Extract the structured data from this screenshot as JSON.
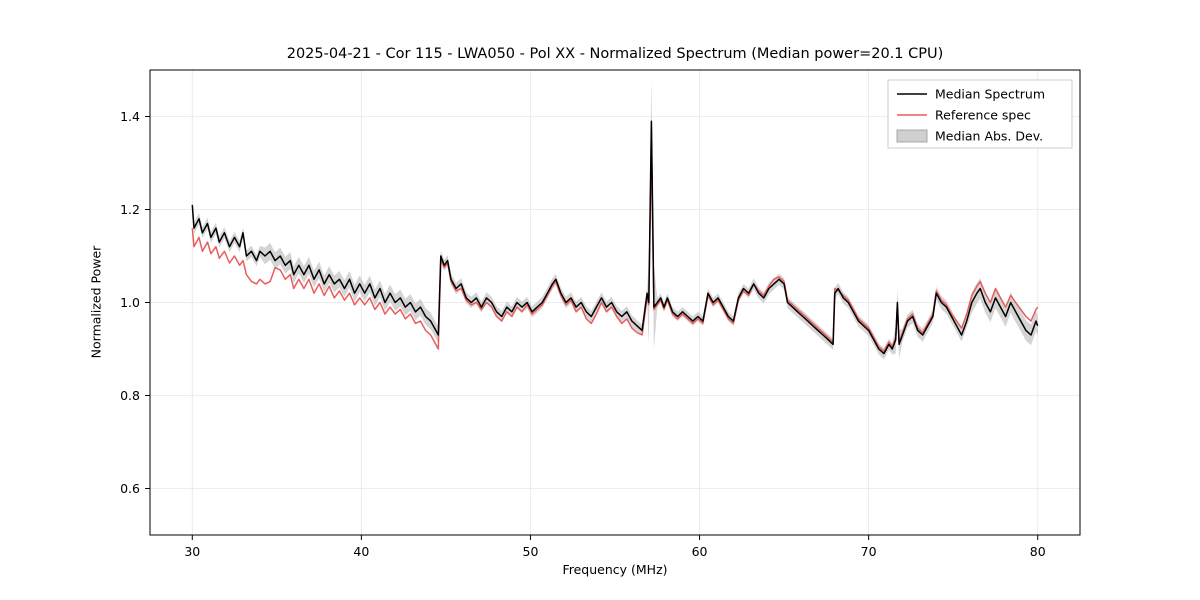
{
  "chart_data": {
    "type": "line",
    "title": "2025-04-21 - Cor 115 - LWA050 - Pol XX - Normalized Spectrum (Median power=20.1 CPU)",
    "xlabel": "Frequency (MHz)",
    "ylabel": "Normalized Power",
    "xlim": [
      27.5,
      82.5
    ],
    "ylim": [
      0.5,
      1.5
    ],
    "xticks": [
      30,
      40,
      50,
      60,
      70,
      80
    ],
    "xtick_labels": [
      "30",
      "40",
      "50",
      "60",
      "70",
      "80"
    ],
    "yticks": [
      0.6,
      0.8,
      1.0,
      1.2,
      1.4
    ],
    "ytick_labels": [
      "0.6",
      "0.8",
      "1.0",
      "1.2",
      "1.4"
    ],
    "grid": true,
    "band_color": "#b0b0b0",
    "legend": {
      "position": "upper right",
      "entries": [
        {
          "label": "Median Spectrum",
          "color": "#000000",
          "type": "line"
        },
        {
          "label": "Reference spec",
          "color": "#e95c5c",
          "type": "line"
        },
        {
          "label": "Median Abs. Dev.",
          "color": "#b0b0b0",
          "type": "patch"
        }
      ]
    },
    "x": [
      30.0,
      30.1,
      30.4,
      30.6,
      30.9,
      31.1,
      31.4,
      31.6,
      31.9,
      32.2,
      32.5,
      32.8,
      33.0,
      33.2,
      33.5,
      33.8,
      34.0,
      34.3,
      34.6,
      34.9,
      35.2,
      35.5,
      35.8,
      36.0,
      36.3,
      36.6,
      36.9,
      37.2,
      37.5,
      37.8,
      38.1,
      38.4,
      38.7,
      39.0,
      39.3,
      39.6,
      39.9,
      40.2,
      40.5,
      40.8,
      41.1,
      41.4,
      41.7,
      42.0,
      42.3,
      42.6,
      42.9,
      43.2,
      43.5,
      43.8,
      44.1,
      44.4,
      44.55,
      44.7,
      44.9,
      45.1,
      45.3,
      45.6,
      45.9,
      46.2,
      46.5,
      46.8,
      47.1,
      47.4,
      47.7,
      48.0,
      48.3,
      48.6,
      48.9,
      49.2,
      49.5,
      49.8,
      50.1,
      50.4,
      50.7,
      51.0,
      51.3,
      51.5,
      51.8,
      52.1,
      52.4,
      52.7,
      53.0,
      53.3,
      53.6,
      53.9,
      54.2,
      54.5,
      54.8,
      55.1,
      55.4,
      55.7,
      56.0,
      56.3,
      56.6,
      56.9,
      57.0,
      57.15,
      57.3,
      57.5,
      57.7,
      57.9,
      58.1,
      58.4,
      58.7,
      59.0,
      59.3,
      59.6,
      59.9,
      60.2,
      60.5,
      60.8,
      61.1,
      61.4,
      61.7,
      62.0,
      62.3,
      62.6,
      62.9,
      63.2,
      63.5,
      63.8,
      64.1,
      64.4,
      64.7,
      65.0,
      65.2,
      65.5,
      65.8,
      66.1,
      66.4,
      66.7,
      67.0,
      67.3,
      67.6,
      67.9,
      68.0,
      68.2,
      68.5,
      68.8,
      69.1,
      69.4,
      69.7,
      70.0,
      70.3,
      70.6,
      70.9,
      71.2,
      71.4,
      71.6,
      71.7,
      71.8,
      72.0,
      72.3,
      72.6,
      72.9,
      73.2,
      73.5,
      73.8,
      74.0,
      74.3,
      74.6,
      74.9,
      75.2,
      75.5,
      75.8,
      76.1,
      76.4,
      76.6,
      76.9,
      77.2,
      77.5,
      77.8,
      78.1,
      78.4,
      78.7,
      79.0,
      79.3,
      79.6,
      79.9,
      80.0
    ],
    "series": [
      {
        "name": "Median Spectrum",
        "color": "#000000",
        "values": [
          1.21,
          1.16,
          1.18,
          1.15,
          1.17,
          1.14,
          1.16,
          1.13,
          1.15,
          1.12,
          1.14,
          1.12,
          1.15,
          1.1,
          1.11,
          1.09,
          1.11,
          1.1,
          1.11,
          1.09,
          1.1,
          1.08,
          1.09,
          1.06,
          1.08,
          1.06,
          1.08,
          1.05,
          1.07,
          1.04,
          1.06,
          1.04,
          1.05,
          1.03,
          1.05,
          1.02,
          1.04,
          1.02,
          1.04,
          1.01,
          1.03,
          1.0,
          1.02,
          1.0,
          1.01,
          0.99,
          1.0,
          0.98,
          0.99,
          0.97,
          0.96,
          0.94,
          0.93,
          1.1,
          1.08,
          1.09,
          1.05,
          1.03,
          1.04,
          1.01,
          1.0,
          1.01,
          0.99,
          1.01,
          1.0,
          0.98,
          0.97,
          0.99,
          0.98,
          1.0,
          0.99,
          1.0,
          0.98,
          0.99,
          1.0,
          1.02,
          1.04,
          1.05,
          1.02,
          1.0,
          1.01,
          0.99,
          1.0,
          0.98,
          0.97,
          0.99,
          1.01,
          0.99,
          1.0,
          0.98,
          0.97,
          0.98,
          0.96,
          0.95,
          0.94,
          1.02,
          1.0,
          1.39,
          0.99,
          1.0,
          1.01,
          0.99,
          1.01,
          0.98,
          0.97,
          0.98,
          0.97,
          0.96,
          0.97,
          0.96,
          1.02,
          1.0,
          1.01,
          0.99,
          0.97,
          0.96,
          1.01,
          1.03,
          1.02,
          1.04,
          1.02,
          1.01,
          1.03,
          1.04,
          1.05,
          1.04,
          1.0,
          0.99,
          0.98,
          0.97,
          0.96,
          0.95,
          0.94,
          0.93,
          0.92,
          0.91,
          1.02,
          1.03,
          1.01,
          1.0,
          0.98,
          0.96,
          0.95,
          0.94,
          0.92,
          0.9,
          0.89,
          0.91,
          0.9,
          0.92,
          1.0,
          0.91,
          0.93,
          0.96,
          0.97,
          0.94,
          0.93,
          0.95,
          0.97,
          1.02,
          1.0,
          0.99,
          0.97,
          0.95,
          0.93,
          0.96,
          1.0,
          1.02,
          1.03,
          1.0,
          0.98,
          1.01,
          0.99,
          0.97,
          1.0,
          0.98,
          0.96,
          0.94,
          0.93,
          0.96,
          0.95
        ]
      },
      {
        "name": "Reference spec",
        "color": "#e95c5c",
        "values": [
          1.16,
          1.12,
          1.14,
          1.11,
          1.13,
          1.105,
          1.12,
          1.095,
          1.11,
          1.085,
          1.1,
          1.08,
          1.09,
          1.06,
          1.045,
          1.04,
          1.05,
          1.04,
          1.045,
          1.075,
          1.07,
          1.05,
          1.06,
          1.03,
          1.05,
          1.03,
          1.05,
          1.02,
          1.04,
          1.015,
          1.035,
          1.01,
          1.025,
          1.005,
          1.02,
          0.995,
          1.01,
          0.995,
          1.01,
          0.985,
          1.0,
          0.975,
          0.99,
          0.975,
          0.985,
          0.965,
          0.975,
          0.955,
          0.96,
          0.94,
          0.93,
          0.91,
          0.9,
          1.095,
          1.075,
          1.085,
          1.045,
          1.025,
          1.03,
          1.005,
          0.995,
          1.0,
          0.985,
          1.0,
          0.99,
          0.97,
          0.96,
          0.98,
          0.97,
          0.99,
          0.98,
          0.995,
          0.975,
          0.985,
          0.995,
          1.015,
          1.035,
          1.045,
          1.015,
          0.995,
          1.005,
          0.98,
          0.99,
          0.965,
          0.955,
          0.975,
          1.0,
          0.98,
          0.99,
          0.97,
          0.955,
          0.965,
          0.945,
          0.935,
          0.93,
          1.01,
          0.995,
          1.34,
          0.985,
          0.995,
          1.005,
          0.985,
          1.005,
          0.975,
          0.965,
          0.975,
          0.965,
          0.955,
          0.965,
          0.955,
          1.015,
          0.995,
          1.005,
          0.985,
          0.965,
          0.955,
          1.005,
          1.025,
          1.015,
          1.04,
          1.025,
          1.015,
          1.035,
          1.05,
          1.055,
          1.045,
          1.005,
          0.995,
          0.985,
          0.975,
          0.965,
          0.955,
          0.945,
          0.935,
          0.925,
          0.915,
          1.03,
          1.025,
          1.015,
          1.005,
          0.985,
          0.965,
          0.955,
          0.945,
          0.925,
          0.905,
          0.895,
          0.915,
          0.905,
          0.925,
          0.99,
          0.915,
          0.935,
          0.965,
          0.975,
          0.945,
          0.935,
          0.955,
          0.975,
          1.025,
          1.005,
          0.995,
          0.975,
          0.96,
          0.945,
          0.975,
          1.015,
          1.035,
          1.045,
          1.02,
          1.0,
          1.03,
          1.01,
          0.99,
          1.015,
          1.0,
          0.985,
          0.97,
          0.96,
          0.985,
          0.99
        ]
      }
    ],
    "mad_ranges": [
      [
        27.5,
        34.0,
        0.012
      ],
      [
        34.0,
        44.65,
        0.018
      ],
      [
        44.65,
        56.95,
        0.012
      ],
      [
        56.95,
        57.3,
        0.09
      ],
      [
        57.3,
        63.0,
        0.01
      ],
      [
        63.0,
        71.55,
        0.012
      ],
      [
        71.55,
        71.85,
        0.03
      ],
      [
        71.85,
        76.0,
        0.014
      ],
      [
        76.0,
        80.5,
        0.022
      ]
    ]
  }
}
